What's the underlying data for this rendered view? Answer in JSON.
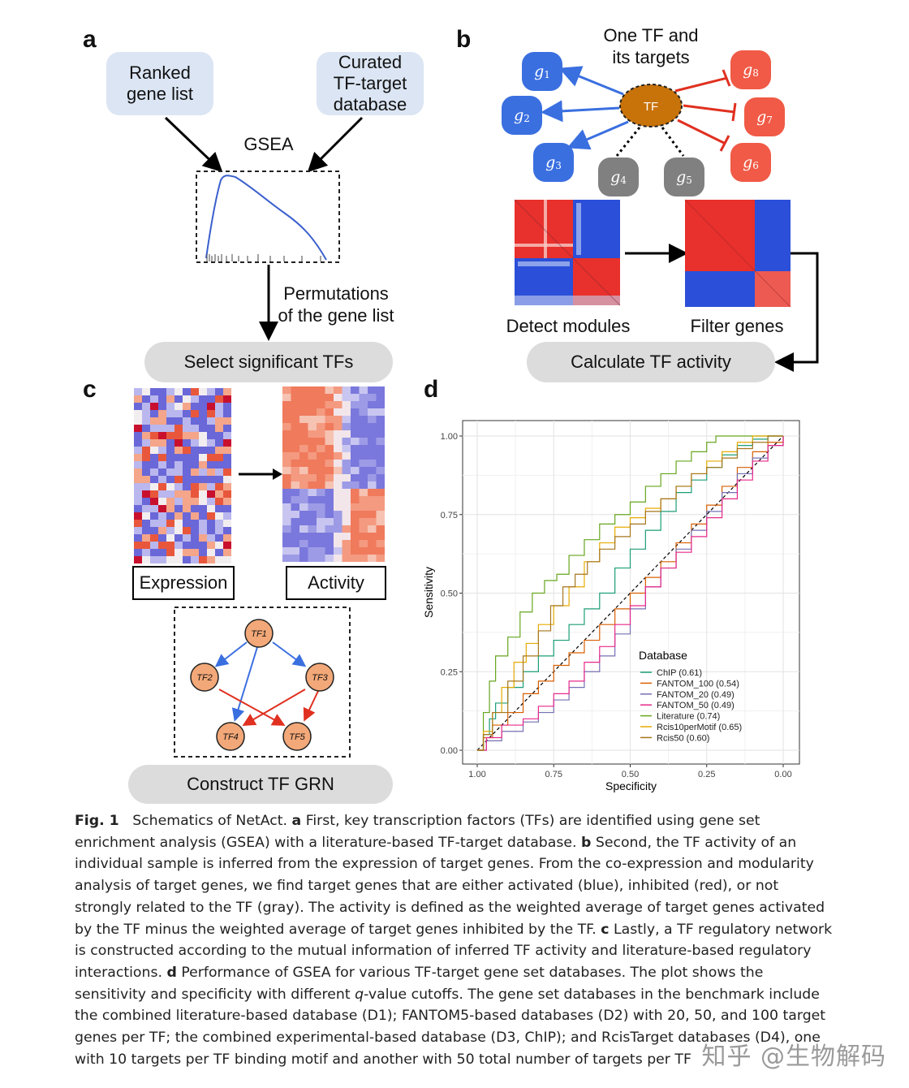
{
  "panel_a": {
    "label": "a",
    "box_ranked": "Ranked gene list",
    "box_ranked_l1": "Ranked",
    "box_ranked_l2": "gene list",
    "box_curated_l1": "Curated",
    "box_curated_l2": "TF-target",
    "box_curated_l3": "database",
    "gsea": "GSEA",
    "perm_l1": "Permutations",
    "perm_l2": "of the gene list",
    "select": "Select significant TFs"
  },
  "panel_b": {
    "label": "b",
    "title_l1": "One TF and",
    "title_l2": "its targets",
    "tf": "TF",
    "genes": [
      {
        "sym": "g",
        "sub": "1",
        "color": "#3a6fe0"
      },
      {
        "sym": "g",
        "sub": "2",
        "color": "#3a6fe0"
      },
      {
        "sym": "g",
        "sub": "3",
        "color": "#3a6fe0"
      },
      {
        "sym": "g",
        "sub": "4",
        "color": "#808080"
      },
      {
        "sym": "g",
        "sub": "5",
        "color": "#808080"
      },
      {
        "sym": "g",
        "sub": "6",
        "color": "#f05a46"
      },
      {
        "sym": "g",
        "sub": "7",
        "color": "#f05a46"
      },
      {
        "sym": "g",
        "sub": "8",
        "color": "#f05a46"
      }
    ],
    "detect": "Detect modules",
    "filter": "Filter genes",
    "calc": "Calculate TF activity"
  },
  "panel_c": {
    "label": "c",
    "expression": "Expression",
    "activity": "Activity",
    "nodes": [
      "TF1",
      "TF2",
      "TF3",
      "TF4",
      "TF5"
    ],
    "construct": "Construct TF GRN"
  },
  "panel_d": {
    "label": "d"
  },
  "chart_data": {
    "type": "line",
    "xlabel": "Specificity",
    "ylabel": "Sensitivity",
    "xlim": [
      1.0,
      0.0
    ],
    "ylim": [
      0.0,
      1.0
    ],
    "x_ticks": [
      "1.00",
      "0.75",
      "0.50",
      "0.25",
      "0.00"
    ],
    "y_ticks": [
      "0.00",
      "0.25",
      "0.50",
      "0.75",
      "1.00"
    ],
    "grid": true,
    "legend_title": "Database",
    "legend_position": "bottom-center",
    "diagonal": true,
    "series": [
      {
        "name": "ChIP (0.61)",
        "color": "#1b9e77",
        "x": [
          1.0,
          0.98,
          0.96,
          0.94,
          0.9,
          0.85,
          0.8,
          0.75,
          0.7,
          0.65,
          0.6,
          0.55,
          0.5,
          0.45,
          0.4,
          0.35,
          0.3,
          0.25,
          0.2,
          0.15,
          0.1,
          0.05,
          0.0
        ],
        "y": [
          0.0,
          0.05,
          0.1,
          0.15,
          0.2,
          0.25,
          0.3,
          0.35,
          0.4,
          0.45,
          0.5,
          0.58,
          0.64,
          0.7,
          0.76,
          0.82,
          0.86,
          0.9,
          0.94,
          0.97,
          0.99,
          1.0,
          1.0
        ]
      },
      {
        "name": "FANTOM_100 (0.54)",
        "color": "#d95f02",
        "x": [
          1.0,
          0.98,
          0.95,
          0.9,
          0.85,
          0.8,
          0.75,
          0.7,
          0.65,
          0.6,
          0.55,
          0.5,
          0.45,
          0.4,
          0.35,
          0.3,
          0.25,
          0.2,
          0.15,
          0.1,
          0.05,
          0.0
        ],
        "y": [
          0.0,
          0.04,
          0.08,
          0.12,
          0.18,
          0.22,
          0.27,
          0.31,
          0.35,
          0.4,
          0.45,
          0.5,
          0.55,
          0.6,
          0.66,
          0.72,
          0.78,
          0.84,
          0.9,
          0.95,
          0.98,
          1.0
        ]
      },
      {
        "name": "FANTOM_20 (0.49)",
        "color": "#7570b3",
        "x": [
          1.0,
          0.97,
          0.92,
          0.85,
          0.8,
          0.75,
          0.7,
          0.65,
          0.6,
          0.55,
          0.5,
          0.45,
          0.4,
          0.35,
          0.3,
          0.25,
          0.2,
          0.15,
          0.1,
          0.05,
          0.0
        ],
        "y": [
          0.0,
          0.03,
          0.06,
          0.09,
          0.12,
          0.16,
          0.2,
          0.25,
          0.3,
          0.37,
          0.45,
          0.52,
          0.58,
          0.64,
          0.7,
          0.76,
          0.82,
          0.88,
          0.93,
          0.97,
          1.0
        ]
      },
      {
        "name": "FANTOM_50 (0.49)",
        "color": "#e7298a",
        "x": [
          1.0,
          0.97,
          0.92,
          0.85,
          0.8,
          0.75,
          0.7,
          0.65,
          0.6,
          0.55,
          0.5,
          0.45,
          0.4,
          0.35,
          0.3,
          0.25,
          0.2,
          0.15,
          0.1,
          0.05,
          0.0
        ],
        "y": [
          0.0,
          0.04,
          0.08,
          0.1,
          0.14,
          0.18,
          0.22,
          0.28,
          0.33,
          0.4,
          0.46,
          0.52,
          0.58,
          0.63,
          0.68,
          0.74,
          0.8,
          0.86,
          0.92,
          0.97,
          1.0
        ]
      },
      {
        "name": "Literature (0.74)",
        "color": "#66a61e",
        "x": [
          1.0,
          0.98,
          0.96,
          0.94,
          0.9,
          0.86,
          0.82,
          0.78,
          0.74,
          0.7,
          0.65,
          0.6,
          0.55,
          0.5,
          0.45,
          0.4,
          0.35,
          0.3,
          0.25,
          0.22,
          0.15,
          0.1,
          0.0
        ],
        "y": [
          0.0,
          0.12,
          0.22,
          0.3,
          0.36,
          0.44,
          0.5,
          0.54,
          0.56,
          0.62,
          0.67,
          0.72,
          0.75,
          0.79,
          0.84,
          0.88,
          0.92,
          0.95,
          0.98,
          1.0,
          1.0,
          1.0,
          1.0
        ]
      },
      {
        "name": "Rcis10perMotif (0.65)",
        "color": "#e6ab02",
        "x": [
          1.0,
          0.98,
          0.95,
          0.92,
          0.88,
          0.84,
          0.8,
          0.75,
          0.7,
          0.65,
          0.6,
          0.55,
          0.5,
          0.45,
          0.4,
          0.35,
          0.3,
          0.25,
          0.2,
          0.15,
          0.1,
          0.05,
          0.0
        ],
        "y": [
          0.0,
          0.06,
          0.12,
          0.2,
          0.28,
          0.34,
          0.4,
          0.46,
          0.52,
          0.6,
          0.66,
          0.71,
          0.74,
          0.77,
          0.8,
          0.84,
          0.88,
          0.92,
          0.95,
          0.98,
          1.0,
          1.0,
          1.0
        ]
      },
      {
        "name": "Rcis50 (0.60)",
        "color": "#a6761d",
        "x": [
          1.0,
          0.98,
          0.95,
          0.9,
          0.85,
          0.8,
          0.76,
          0.72,
          0.68,
          0.64,
          0.6,
          0.55,
          0.5,
          0.45,
          0.4,
          0.35,
          0.3,
          0.25,
          0.2,
          0.15,
          0.1,
          0.05,
          0.0
        ],
        "y": [
          0.0,
          0.05,
          0.12,
          0.22,
          0.3,
          0.38,
          0.46,
          0.52,
          0.56,
          0.6,
          0.64,
          0.68,
          0.72,
          0.76,
          0.8,
          0.84,
          0.88,
          0.9,
          0.93,
          0.96,
          0.98,
          1.0,
          1.0
        ]
      }
    ]
  },
  "caption": {
    "fig": "Fig. 1",
    "title": "Schematics of NetAct.",
    "a": "a",
    "text_a": "First, key transcription factors (TFs) are identified using gene set enrichment analysis (GSEA) with a literature-based TF-target database.",
    "b": "b",
    "text_b": "Second, the TF activity of an individual sample is inferred from the expression of target genes. From the co-expression and modularity analysis of target genes, we find target genes that are either activated (blue), inhibited (red), or not strongly related to the TF (gray). The activity is defined as the weighted average of target genes activated by the TF minus the weighted average of target genes inhibited by the TF.",
    "c": "c",
    "text_c": "Lastly, a TF regulatory network is constructed according to the mutual information of inferred TF activity and literature-based regulatory interactions.",
    "d": "d",
    "text_d1": "Performance of GSEA for various TF-target gene set databases. The plot shows the sensitivity and specificity with different",
    "q": "q",
    "text_d2": "-value cutoffs. The gene set databases in the benchmark include the combined literature-based database (D1); FANTOM5-based databases (D2) with 20, 50, and 100 target genes per TF; the combined experimental-based database (D3, ChIP); and RcisTarget databases (D4), one with 10 targets per TF binding motif and another with 50 total number of targets per TF"
  },
  "watermark": "知乎 @生物解码"
}
